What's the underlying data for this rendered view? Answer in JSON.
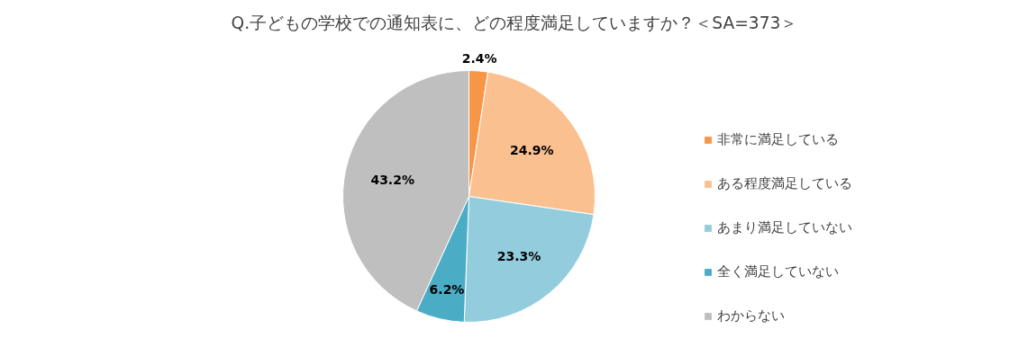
{
  "chart_data": {
    "type": "pie",
    "title": "Q.子どもの学校での通知表に、どの程度満足していますか？＜SA=373＞",
    "categories": [
      "非常に満足している",
      "ある程度満足している",
      "あまり満足していない",
      "全く満足していない",
      "わからない"
    ],
    "values": [
      2.4,
      24.9,
      23.3,
      6.2,
      43.2
    ],
    "value_labels": [
      "2.4%",
      "24.9%",
      "23.3%",
      "6.2%",
      "43.2%"
    ],
    "colors": [
      "#f79646",
      "#fac090",
      "#93cddd",
      "#4bacc6",
      "#bfbfbf"
    ],
    "legend": "right"
  }
}
